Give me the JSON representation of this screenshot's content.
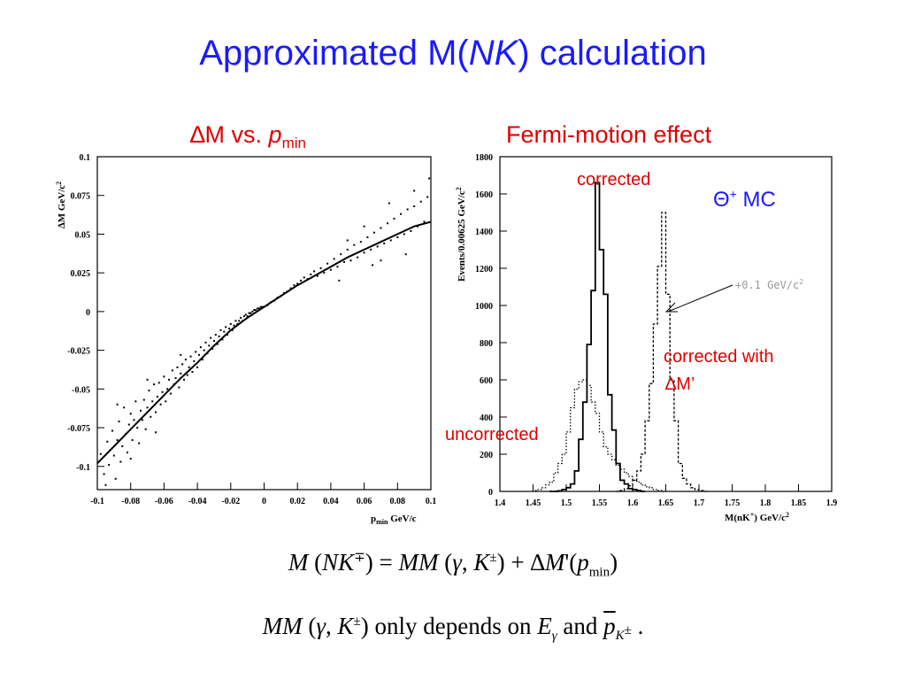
{
  "title": {
    "pre": "Approximated M(",
    "italic": "NK",
    "post": ") calculation"
  },
  "subtitles": {
    "left": {
      "delta": "∆",
      "text": "M vs. ",
      "p": "p",
      "sub": "min"
    },
    "right": "Fermi-motion effect"
  },
  "annotations": {
    "corrected": "corrected",
    "theta": "Θ",
    "theta_sup": "+",
    "mc": " MC",
    "shift": "+0.1 GeV/c",
    "shift_sup": "2",
    "corrected_with_1": "corrected with",
    "corrected_with_2": "∆M’",
    "uncorrected": "uncorrected"
  },
  "equations": {
    "eq1": {
      "M": "M",
      "NK": "NK",
      "mp": "∓",
      "eq": " = ",
      "MM": "MM",
      "gamma": "γ",
      "K": "K",
      "pm": "±",
      "plus": " + ∆",
      "Mp": "M",
      "prime": "'(",
      "p": "p",
      "min": "min"
    },
    "eq2": {
      "MM": "MM",
      "gamma": "γ",
      "K": "K",
      "pm": "±",
      "text": " only depends on ",
      "E": "E",
      "Egamma": "γ",
      "and": " and ",
      "p": "p",
      "pK": "K",
      "pKsup": "±",
      "dot": " ."
    }
  },
  "chart_data": [
    {
      "type": "scatter",
      "xlabel": "p",
      "xlabel_sub": "min",
      "xlabel_unit": " GeV/c",
      "ylabel": "∆M GeV/c",
      "ylabel_sup": "2",
      "xlim": [
        -0.1,
        0.1
      ],
      "ylim": [
        -0.115,
        0.1
      ],
      "xticks": [
        -0.1,
        -0.08,
        -0.06,
        -0.04,
        -0.02,
        0,
        0.02,
        0.04,
        0.06,
        0.08,
        0.1
      ],
      "xtick_labels": [
        "-0.1",
        "-0.08",
        "-0.06",
        "-0.04",
        "-0.02",
        "0",
        "0.02",
        "0.04",
        "0.06",
        "0.08",
        "0.1"
      ],
      "yticks": [
        -0.1,
        -0.075,
        -0.05,
        -0.025,
        0,
        0.025,
        0.05,
        0.075,
        0.1
      ],
      "ytick_labels": [
        "-0.1",
        "-0.075",
        "-0.05",
        "-0.025",
        "0",
        "0.025",
        "0.05",
        "0.075",
        "0.1"
      ],
      "fit_curve": {
        "x": [
          -0.1,
          -0.09,
          -0.08,
          -0.07,
          -0.06,
          -0.05,
          -0.04,
          -0.03,
          -0.02,
          -0.01,
          0,
          0.01,
          0.02,
          0.03,
          0.04,
          0.05,
          0.06,
          0.07,
          0.08,
          0.09,
          0.1
        ],
        "y": [
          -0.098,
          -0.087,
          -0.076,
          -0.065,
          -0.054,
          -0.043,
          -0.033,
          -0.022,
          -0.012,
          -0.004,
          0.003,
          0.01,
          0.017,
          0.023,
          0.029,
          0.035,
          0.04,
          0.045,
          0.05,
          0.055,
          0.058
        ]
      },
      "points": [
        [
          -0.098,
          -0.092
        ],
        [
          -0.096,
          -0.105
        ],
        [
          -0.094,
          -0.084
        ],
        [
          -0.093,
          -0.099
        ],
        [
          -0.091,
          -0.077
        ],
        [
          -0.09,
          -0.093
        ],
        [
          -0.089,
          -0.108
        ],
        [
          -0.088,
          -0.083
        ],
        [
          -0.087,
          -0.071
        ],
        [
          -0.086,
          -0.097
        ],
        [
          -0.085,
          -0.087
        ],
        [
          -0.084,
          -0.062
        ],
        [
          -0.083,
          -0.079
        ],
        [
          -0.082,
          -0.091
        ],
        [
          -0.081,
          -0.073
        ],
        [
          -0.08,
          -0.066
        ],
        [
          -0.079,
          -0.083
        ],
        [
          -0.078,
          -0.07
        ],
        [
          -0.077,
          -0.058
        ],
        [
          -0.076,
          -0.075
        ],
        [
          -0.075,
          -0.085
        ],
        [
          -0.074,
          -0.064
        ],
        [
          -0.073,
          -0.07
        ],
        [
          -0.072,
          -0.057
        ],
        [
          -0.071,
          -0.076
        ],
        [
          -0.07,
          -0.062
        ],
        [
          -0.069,
          -0.051
        ],
        [
          -0.068,
          -0.068
        ],
        [
          -0.067,
          -0.058
        ],
        [
          -0.066,
          -0.047
        ],
        [
          -0.065,
          -0.065
        ],
        [
          -0.064,
          -0.055
        ],
        [
          -0.063,
          -0.046
        ],
        [
          -0.062,
          -0.06
        ],
        [
          -0.061,
          -0.052
        ],
        [
          -0.06,
          -0.042
        ],
        [
          -0.059,
          -0.058
        ],
        [
          -0.058,
          -0.05
        ],
        [
          -0.057,
          -0.044
        ],
        [
          -0.056,
          -0.053
        ],
        [
          -0.055,
          -0.038
        ],
        [
          -0.054,
          -0.047
        ],
        [
          -0.053,
          -0.043
        ],
        [
          -0.052,
          -0.036
        ],
        [
          -0.051,
          -0.049
        ],
        [
          -0.05,
          -0.04
        ],
        [
          -0.049,
          -0.034
        ],
        [
          -0.048,
          -0.044
        ],
        [
          -0.047,
          -0.031
        ],
        [
          -0.046,
          -0.041
        ],
        [
          -0.045,
          -0.036
        ],
        [
          -0.044,
          -0.029
        ],
        [
          -0.043,
          -0.039
        ],
        [
          -0.042,
          -0.032
        ],
        [
          -0.041,
          -0.026
        ],
        [
          -0.04,
          -0.036
        ],
        [
          -0.039,
          -0.028
        ],
        [
          -0.038,
          -0.023
        ],
        [
          -0.037,
          -0.031
        ],
        [
          -0.036,
          -0.025
        ],
        [
          -0.035,
          -0.02
        ],
        [
          -0.034,
          -0.027
        ],
        [
          -0.033,
          -0.022
        ],
        [
          -0.032,
          -0.017
        ],
        [
          -0.031,
          -0.024
        ],
        [
          -0.03,
          -0.019
        ],
        [
          -0.029,
          -0.015
        ],
        [
          -0.028,
          -0.021
        ],
        [
          -0.027,
          -0.016
        ],
        [
          -0.026,
          -0.012
        ],
        [
          -0.025,
          -0.018
        ],
        [
          -0.024,
          -0.013
        ],
        [
          -0.023,
          -0.01
        ],
        [
          -0.022,
          -0.015
        ],
        [
          -0.021,
          -0.011
        ],
        [
          -0.02,
          -0.008
        ],
        [
          -0.019,
          -0.012
        ],
        [
          -0.018,
          -0.009
        ],
        [
          -0.017,
          -0.006
        ],
        [
          -0.016,
          -0.008
        ],
        [
          -0.015,
          -0.006
        ],
        [
          -0.014,
          -0.004
        ],
        [
          -0.013,
          -0.006
        ],
        [
          -0.012,
          -0.003
        ],
        [
          -0.011,
          -0.002
        ],
        [
          -0.01,
          -0.003
        ],
        [
          -0.009,
          -0.001
        ],
        [
          -0.008,
          -0.001
        ],
        [
          -0.007,
          0.0
        ],
        [
          -0.006,
          0.001
        ],
        [
          -0.005,
          0.001
        ],
        [
          -0.004,
          0.002
        ],
        [
          -0.003,
          0.002
        ],
        [
          -0.002,
          0.003
        ],
        [
          -0.001,
          0.003
        ],
        [
          0.0,
          0.003
        ],
        [
          0.002,
          0.004
        ],
        [
          0.004,
          0.006
        ],
        [
          0.006,
          0.007
        ],
        [
          0.008,
          0.009
        ],
        [
          0.01,
          0.01
        ],
        [
          0.012,
          0.012
        ],
        [
          0.014,
          0.013
        ],
        [
          0.016,
          0.015
        ],
        [
          0.018,
          0.017
        ],
        [
          0.02,
          0.018
        ],
        [
          0.022,
          0.02
        ],
        [
          0.024,
          0.022
        ],
        [
          0.026,
          0.021
        ],
        [
          0.028,
          0.024
        ],
        [
          0.03,
          0.026
        ],
        [
          0.032,
          0.023
        ],
        [
          0.034,
          0.028
        ],
        [
          0.036,
          0.025
        ],
        [
          0.038,
          0.031
        ],
        [
          0.04,
          0.027
        ],
        [
          0.042,
          0.034
        ],
        [
          0.044,
          0.029
        ],
        [
          0.046,
          0.037
        ],
        [
          0.048,
          0.032
        ],
        [
          0.05,
          0.04
        ],
        [
          0.052,
          0.033
        ],
        [
          0.054,
          0.043
        ],
        [
          0.056,
          0.035
        ],
        [
          0.058,
          0.045
        ],
        [
          0.06,
          0.038
        ],
        [
          0.062,
          0.048
        ],
        [
          0.064,
          0.04
        ],
        [
          0.066,
          0.051
        ],
        [
          0.068,
          0.042
        ],
        [
          0.07,
          0.054
        ],
        [
          0.072,
          0.044
        ],
        [
          0.074,
          0.057
        ],
        [
          0.076,
          0.046
        ],
        [
          0.078,
          0.06
        ],
        [
          0.08,
          0.048
        ],
        [
          0.082,
          0.063
        ],
        [
          0.084,
          0.05
        ],
        [
          0.086,
          0.066
        ],
        [
          0.088,
          0.052
        ],
        [
          0.09,
          0.068
        ],
        [
          0.092,
          0.055
        ],
        [
          0.094,
          0.071
        ],
        [
          0.096,
          0.058
        ],
        [
          0.098,
          0.074
        ],
        [
          0.099,
          0.086
        ],
        [
          -0.095,
          -0.112
        ],
        [
          -0.08,
          -0.095
        ],
        [
          -0.065,
          -0.078
        ],
        [
          0.085,
          0.037
        ],
        [
          0.065,
          0.03
        ],
        [
          0.045,
          0.02
        ],
        [
          -0.07,
          -0.044
        ],
        [
          -0.05,
          -0.028
        ],
        [
          0.075,
          0.07
        ],
        [
          0.09,
          0.078
        ],
        [
          0.07,
          0.033
        ],
        [
          -0.088,
          -0.06
        ],
        [
          0.05,
          0.046
        ],
        [
          0.06,
          0.055
        ]
      ]
    },
    {
      "type": "histogram",
      "xlabel": "M(nK",
      "xlabel_sup": "+",
      "xlabel_unit": ") GeV/c",
      "xlabel_unit_sup": "2",
      "ylabel": "Events/0.00625 GeV/c",
      "ylabel_sup": "2",
      "xlim": [
        1.4,
        1.9
      ],
      "ylim": [
        0,
        1800
      ],
      "xticks": [
        1.4,
        1.45,
        1.5,
        1.55,
        1.6,
        1.65,
        1.7,
        1.75,
        1.8,
        1.85,
        1.9
      ],
      "xtick_labels": [
        "1.4",
        "1.45",
        "1.5",
        "1.55",
        "1.6",
        "1.65",
        "1.7",
        "1.75",
        "1.8",
        "1.85",
        "1.9"
      ],
      "yticks": [
        0,
        200,
        400,
        600,
        800,
        1000,
        1200,
        1400,
        1600,
        1800
      ],
      "ytick_labels": [
        "0",
        "200",
        "400",
        "600",
        "800",
        "1000",
        "1200",
        "1400",
        "1600",
        "1800"
      ],
      "bin_width": 0.00625,
      "series": [
        {
          "name": "corrected",
          "style": "solid",
          "start": 1.475,
          "values": [
            0,
            0,
            3,
            10,
            20,
            40,
            110,
            280,
            480,
            790,
            1080,
            1660,
            1300,
            1060,
            520,
            330,
            150,
            60,
            40,
            15,
            10,
            5,
            0
          ]
        },
        {
          "name": "uncorrected",
          "style": "dotted",
          "start": 1.45,
          "values": [
            5,
            10,
            20,
            35,
            50,
            100,
            150,
            200,
            320,
            450,
            550,
            590,
            600,
            570,
            480,
            420,
            320,
            240,
            200,
            170,
            140,
            120,
            100,
            80,
            60,
            50,
            35,
            25,
            20,
            10,
            5,
            0
          ]
        },
        {
          "name": "corrected with ∆M’",
          "style": "dashed",
          "start": 1.575,
          "values": [
            0,
            5,
            15,
            30,
            60,
            110,
            200,
            380,
            580,
            900,
            1210,
            1500,
            1060,
            600,
            380,
            150,
            70,
            40,
            20,
            10,
            5,
            0
          ]
        }
      ]
    }
  ]
}
